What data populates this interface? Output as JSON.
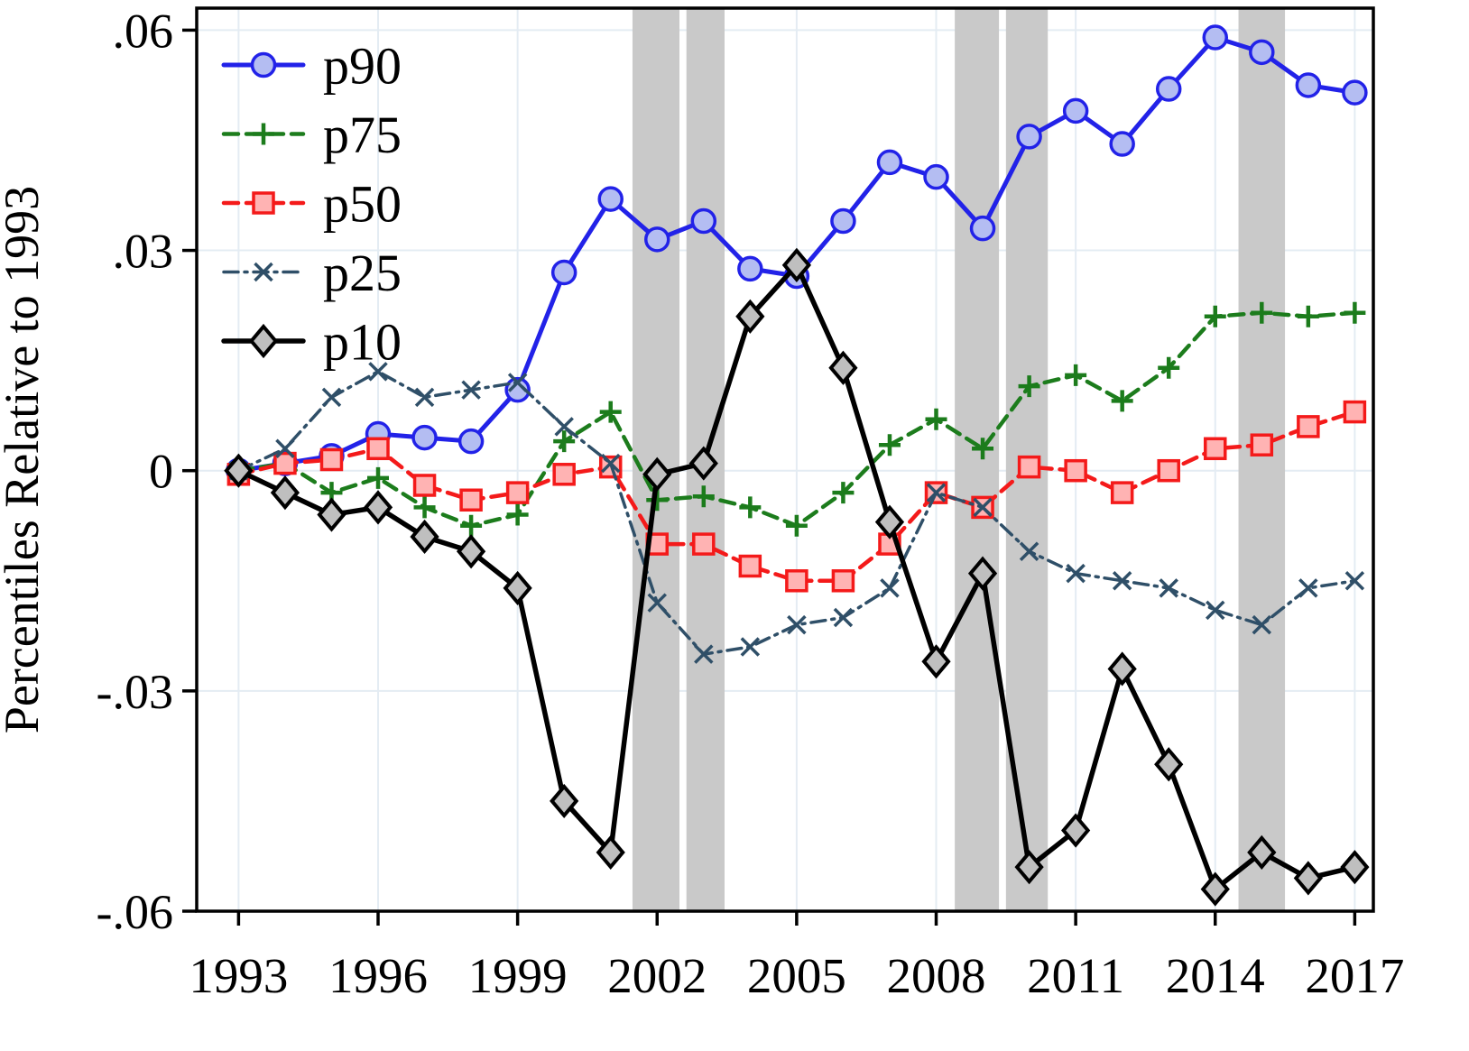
{
  "chart_data": {
    "type": "line",
    "title": "",
    "xlabel": "",
    "ylabel": "Percentiles Relative to 1993",
    "xlim": [
      1992.1,
      2017.4
    ],
    "ylim": [
      -0.06,
      0.063
    ],
    "xticks": [
      1993,
      1996,
      1999,
      2002,
      2005,
      2008,
      2011,
      2014,
      2017
    ],
    "xtick_labels": [
      "1993",
      "1996",
      "1999",
      "2002",
      "2005",
      "2008",
      "2011",
      "2014",
      "2017"
    ],
    "yticks": [
      0.06,
      0.03,
      0,
      -0.03,
      -0.06
    ],
    "ytick_labels": [
      ".06",
      ".03",
      "0",
      "-.03",
      "-.06"
    ],
    "grid": true,
    "grid_color": "#e4ecf3",
    "frame_color": "#000000",
    "background_color": "#ffffff",
    "shade_color": "#c9c9c9",
    "shaded_regions": [
      [
        2001.47,
        2002.48
      ],
      [
        2002.63,
        2003.45
      ],
      [
        2008.4,
        2009.35
      ],
      [
        2009.5,
        2010.4
      ],
      [
        2014.5,
        2015.5
      ]
    ],
    "legend_position": "top-left",
    "x": [
      1993,
      1994,
      1995,
      1996,
      1997,
      1998,
      1999,
      2000,
      2001,
      2002,
      2003,
      2004,
      2005,
      2006,
      2007,
      2008,
      2009,
      2010,
      2011,
      2012,
      2013,
      2014,
      2015,
      2016,
      2017
    ],
    "series": [
      {
        "name": "p90",
        "color": "#2222e8",
        "marker": "circle",
        "marker_fill": "#b4bdf2",
        "line_width": 5,
        "dash": "solid",
        "values": [
          0.0,
          0.001,
          0.002,
          0.005,
          0.0045,
          0.004,
          0.011,
          0.027,
          0.037,
          0.0315,
          0.034,
          0.0275,
          0.0265,
          0.034,
          0.042,
          0.04,
          0.033,
          0.0455,
          0.049,
          0.0445,
          0.052,
          0.059,
          0.057,
          0.0525,
          0.0515
        ]
      },
      {
        "name": "p75",
        "color": "#1c7c1c",
        "marker": "plus",
        "marker_fill": "none",
        "line_width": 4.5,
        "dash": "16 9",
        "values": [
          0.0,
          0.001,
          -0.003,
          -0.001,
          -0.005,
          -0.0075,
          -0.006,
          0.004,
          0.008,
          -0.004,
          -0.0035,
          -0.005,
          -0.0075,
          -0.003,
          0.0035,
          0.007,
          0.003,
          0.0115,
          0.013,
          0.0095,
          0.014,
          0.021,
          0.0215,
          0.021,
          0.0215
        ]
      },
      {
        "name": "p50",
        "color": "#f41a1a",
        "marker": "square",
        "marker_fill": "#ffb3b3",
        "line_width": 4.5,
        "dash": "16 9",
        "values": [
          -0.0005,
          0.001,
          0.0015,
          0.003,
          -0.002,
          -0.004,
          -0.003,
          -0.0005,
          0.0005,
          -0.01,
          -0.01,
          -0.013,
          -0.015,
          -0.015,
          -0.01,
          -0.003,
          -0.005,
          0.0005,
          0.0,
          -0.003,
          0.0,
          0.003,
          0.0035,
          0.006,
          0.008
        ]
      },
      {
        "name": "p25",
        "color": "#2f4f68",
        "marker": "x",
        "marker_fill": "none",
        "line_width": 3.5,
        "dash": "16 7 3 7",
        "values": [
          0.0,
          0.003,
          0.01,
          0.0135,
          0.01,
          0.011,
          0.012,
          0.006,
          0.001,
          -0.018,
          -0.025,
          -0.024,
          -0.021,
          -0.02,
          -0.016,
          -0.003,
          -0.005,
          -0.011,
          -0.014,
          -0.015,
          -0.016,
          -0.019,
          -0.021,
          -0.016,
          -0.015
        ]
      },
      {
        "name": "p10",
        "color": "#000000",
        "marker": "diamond",
        "marker_fill": "#bfbfbf",
        "line_width": 5.5,
        "dash": "solid",
        "values": [
          0.0,
          -0.003,
          -0.006,
          -0.005,
          -0.009,
          -0.011,
          -0.016,
          -0.045,
          -0.052,
          -0.0005,
          0.001,
          0.021,
          0.028,
          0.014,
          -0.007,
          -0.026,
          -0.014,
          -0.054,
          -0.049,
          -0.027,
          -0.04,
          -0.057,
          -0.052,
          -0.0555,
          -0.054
        ]
      }
    ]
  }
}
